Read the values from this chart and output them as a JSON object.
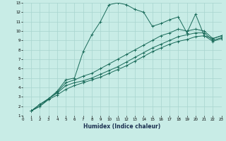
{
  "xlabel": "Humidex (Indice chaleur)",
  "xlim": [
    0,
    23
  ],
  "ylim": [
    1,
    13
  ],
  "xticks": [
    0,
    1,
    2,
    3,
    4,
    5,
    6,
    7,
    8,
    9,
    10,
    11,
    12,
    13,
    14,
    15,
    16,
    17,
    18,
    19,
    20,
    21,
    22,
    23
  ],
  "yticks": [
    1,
    2,
    3,
    4,
    5,
    6,
    7,
    8,
    9,
    10,
    11,
    12,
    13
  ],
  "bg_color": "#c8ece6",
  "grid_color": "#a8d4ce",
  "line_color": "#1a6b5a",
  "series": [
    {
      "x": [
        1,
        2,
        3,
        4,
        5,
        6,
        7,
        8,
        9,
        10,
        11,
        12,
        13,
        14,
        15,
        16,
        17,
        18,
        19,
        20,
        21,
        22,
        23
      ],
      "y": [
        1.5,
        2.2,
        2.8,
        3.6,
        4.8,
        5.0,
        7.8,
        9.6,
        11.0,
        12.8,
        13.0,
        12.8,
        12.3,
        12.0,
        10.5,
        10.8,
        11.2,
        11.5,
        9.8,
        11.8,
        9.5,
        9.2,
        9.5
      ]
    },
    {
      "x": [
        1,
        2,
        3,
        4,
        5,
        6,
        7,
        8,
        9,
        10,
        11,
        12,
        13,
        14,
        15,
        16,
        17,
        18,
        19,
        20,
        21,
        22,
        23
      ],
      "y": [
        1.5,
        2.2,
        2.8,
        3.5,
        4.5,
        4.8,
        5.2,
        5.5,
        6.0,
        6.5,
        7.0,
        7.5,
        8.0,
        8.5,
        9.0,
        9.5,
        9.8,
        10.2,
        10.0,
        10.2,
        10.0,
        9.2,
        9.5
      ]
    },
    {
      "x": [
        1,
        2,
        3,
        4,
        5,
        6,
        7,
        8,
        9,
        10,
        11,
        12,
        13,
        14,
        15,
        16,
        17,
        18,
        19,
        20,
        21,
        22,
        23
      ],
      "y": [
        1.5,
        2.0,
        2.8,
        3.4,
        4.2,
        4.5,
        4.7,
        5.0,
        5.4,
        5.8,
        6.2,
        6.7,
        7.2,
        7.7,
        8.2,
        8.6,
        9.0,
        9.4,
        9.6,
        9.8,
        9.8,
        9.0,
        9.3
      ]
    },
    {
      "x": [
        1,
        2,
        3,
        4,
        5,
        6,
        7,
        8,
        9,
        10,
        11,
        12,
        13,
        14,
        15,
        16,
        17,
        18,
        19,
        20,
        21,
        22,
        23
      ],
      "y": [
        1.5,
        2.0,
        2.7,
        3.2,
        3.8,
        4.2,
        4.5,
        4.8,
        5.1,
        5.5,
        5.9,
        6.3,
        6.8,
        7.3,
        7.8,
        8.2,
        8.6,
        8.9,
        9.1,
        9.4,
        9.5,
        8.9,
        9.2
      ]
    }
  ]
}
